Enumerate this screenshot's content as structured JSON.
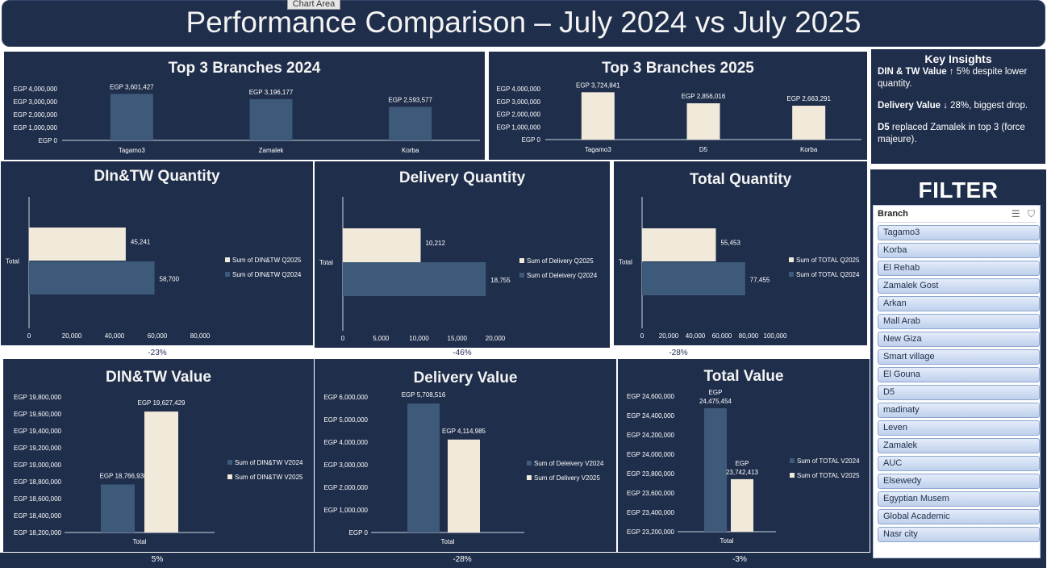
{
  "header": {
    "title": "Performance Comparison – July 2024 vs July 2025",
    "chart_area_label": "Chart Area"
  },
  "insights": {
    "title": "Key Insights",
    "items": [
      {
        "bold": "DIN & TW Value",
        "text": " ↑ 5% despite lower quantity."
      },
      {
        "bold": "Delivery Value",
        "text": " ↓ 28%, biggest drop."
      },
      {
        "bold": "D5",
        "text": " replaced Zamalek in top 3 (force majeure)."
      }
    ]
  },
  "filter": {
    "title": "FILTER",
    "slicer_header": "Branch",
    "items": [
      "Tagamo3",
      "Korba",
      "El Rehab",
      "Zamalek Gost",
      "Arkan",
      "Mall Arab",
      "New Giza",
      "Smart village",
      "El Gouna",
      "D5",
      "madinaty",
      "Leven",
      "Zamalek",
      "AUC",
      "Elsewedy",
      "Egyptian Musem",
      " Global Academic",
      "Nasr city"
    ]
  },
  "colors": {
    "bg": "#1f2e4b",
    "dark_bar": "#3e5a7a",
    "light_bar": "#f1eadb",
    "text": "#ffffff"
  },
  "changes": {
    "din_qty": "-23%",
    "del_qty": "-46%",
    "tot_qty": "-28%",
    "din_val": "5%",
    "del_val": "-28%",
    "tot_val": "-3%"
  },
  "chart_data": [
    {
      "id": "top3_2024",
      "type": "bar",
      "title": "Top 3 Branches 2024",
      "categories": [
        "Tagamo3",
        "Zamalek",
        "Korba"
      ],
      "values": [
        3601427,
        3196177,
        2593577
      ],
      "data_labels": [
        "EGP 3,601,427",
        "EGP 3,196,177",
        "EGP 2,593,577"
      ],
      "ylim": [
        0,
        4000000
      ],
      "yticks": [
        "EGP 0",
        "EGP 1,000,000",
        "EGP 2,000,000",
        "EGP 3,000,000",
        "EGP 4,000,000"
      ],
      "color": "#3e5a7a"
    },
    {
      "id": "top3_2025",
      "type": "bar",
      "title": "Top 3 Branches 2025",
      "categories": [
        "Tagamo3",
        "D5",
        "Korba"
      ],
      "values": [
        3724841,
        2856016,
        2663291
      ],
      "data_labels": [
        "EGP 3,724,841",
        "EGP 2,856,016",
        "EGP 2,663,291"
      ],
      "ylim": [
        0,
        4000000
      ],
      "yticks": [
        "EGP 0",
        "EGP 1,000,000",
        "EGP 2,000,000",
        "EGP 3,000,000",
        "EGP 4,000,000"
      ],
      "color": "#f1eadb"
    },
    {
      "id": "din_qty",
      "type": "bar",
      "orientation": "horizontal",
      "title": "DIn&TW Quantity",
      "categories": [
        "Total"
      ],
      "xlim": [
        0,
        80000
      ],
      "xticks": [
        "0",
        "20,000",
        "40,000",
        "60,000",
        "80,000"
      ],
      "series": [
        {
          "name": "Sum of DIN&TW Q2025",
          "values": [
            45241
          ],
          "label": "45,241",
          "color": "#f1eadb"
        },
        {
          "name": "Sum of DIN&TW Q2024",
          "values": [
            58700
          ],
          "label": "58,700",
          "color": "#3e5a7a"
        }
      ]
    },
    {
      "id": "del_qty",
      "type": "bar",
      "orientation": "horizontal",
      "title": "Delivery Quantity",
      "categories": [
        "Total"
      ],
      "xlim": [
        0,
        20000
      ],
      "xticks": [
        "0",
        "5,000",
        "10,000",
        "15,000",
        "20,000"
      ],
      "series": [
        {
          "name": "Sum of Delivery Q2025",
          "values": [
            10212
          ],
          "label": "10,212",
          "color": "#f1eadb"
        },
        {
          "name": "Sum of Deleivery Q2024",
          "values": [
            18755
          ],
          "label": "18,755",
          "color": "#3e5a7a"
        }
      ]
    },
    {
      "id": "tot_qty",
      "type": "bar",
      "orientation": "horizontal",
      "title": "Total Quantity",
      "categories": [
        "Total"
      ],
      "xlim": [
        0,
        100000
      ],
      "xticks": [
        "0",
        "20,000",
        "40,000",
        "60,000",
        "80,000",
        "100,000"
      ],
      "series": [
        {
          "name": "Sum of TOTAL Q2025",
          "values": [
            55453
          ],
          "label": "55,453",
          "color": "#f1eadb"
        },
        {
          "name": "Sum of TOTAL Q2024",
          "values": [
            77455
          ],
          "label": "77,455",
          "color": "#3e5a7a"
        }
      ]
    },
    {
      "id": "din_val",
      "type": "bar",
      "title": "DIN&TW Value",
      "categories": [
        "Total"
      ],
      "ylim": [
        18200000,
        19800000
      ],
      "yticks": [
        "EGP 18,200,000",
        "EGP 18,400,000",
        "EGP 18,600,000",
        "EGP 18,800,000",
        "EGP 19,000,000",
        "EGP 19,200,000",
        "EGP 19,400,000",
        "EGP 19,600,000",
        "EGP 19,800,000"
      ],
      "series": [
        {
          "name": "Sum of DIN&TW V2024",
          "values": [
            18766938
          ],
          "label": "EGP 18,766,938",
          "color": "#3e5a7a"
        },
        {
          "name": "Sum of DIN&TW V2025",
          "values": [
            19627429
          ],
          "label": "EGP 19,627,429",
          "color": "#f1eadb"
        }
      ]
    },
    {
      "id": "del_val",
      "type": "bar",
      "title": "Delivery Value",
      "categories": [
        "Total"
      ],
      "ylim": [
        0,
        6000000
      ],
      "yticks": [
        "EGP 0",
        "EGP 1,000,000",
        "EGP 2,000,000",
        "EGP 3,000,000",
        "EGP 4,000,000",
        "EGP 5,000,000",
        "EGP 6,000,000"
      ],
      "series": [
        {
          "name": "Sum of Deleivery V2024",
          "values": [
            5708516
          ],
          "label": "EGP 5,708,516",
          "color": "#3e5a7a"
        },
        {
          "name": "Sum of Delivery V2025",
          "values": [
            4114985
          ],
          "label": "EGP 4,114,985",
          "color": "#f1eadb"
        }
      ]
    },
    {
      "id": "tot_val",
      "type": "bar",
      "title": "Total Value",
      "categories": [
        "Total"
      ],
      "ylim": [
        23200000,
        24600000
      ],
      "yticks": [
        "EGP 23,200,000",
        "EGP 23,400,000",
        "EGP 23,600,000",
        "EGP 23,800,000",
        "EGP 24,000,000",
        "EGP 24,200,000",
        "EGP 24,400,000",
        "EGP 24,600,000"
      ],
      "series": [
        {
          "name": "Sum of TOTAL V2024",
          "values": [
            24475454
          ],
          "label": "EGP 24,475,454",
          "label_lines": [
            "EGP",
            "24,475,454"
          ],
          "color": "#3e5a7a"
        },
        {
          "name": "Sum of TOTAL V2025",
          "values": [
            23742413
          ],
          "label": "EGP 23,742,413",
          "label_lines": [
            "EGP",
            "23,742,413"
          ],
          "color": "#f1eadb"
        }
      ]
    }
  ]
}
